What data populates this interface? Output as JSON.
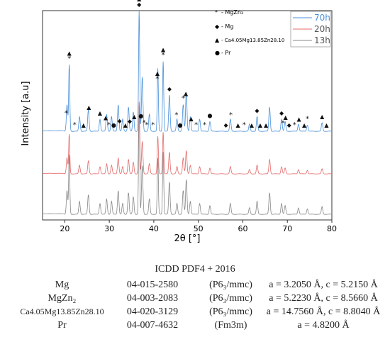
{
  "chart_data": {
    "type": "line",
    "xlabel": "2θ [°]",
    "ylabel": "Intensity [a.u]",
    "xlim": [
      15,
      80
    ],
    "xticks": [
      20,
      30,
      40,
      50,
      60,
      70,
      80
    ],
    "grid": false,
    "legend": {
      "placement": "top-right",
      "entries": [
        {
          "name": "70h",
          "color": "#4a90d9"
        },
        {
          "name": "20h",
          "color": "#e36a6a"
        },
        {
          "name": "13h",
          "color": "#888888"
        }
      ]
    },
    "phase_key": {
      "placement": "top-center",
      "entries": [
        {
          "symbol": "*",
          "label": "- MgZn₂"
        },
        {
          "symbol": "◆",
          "label": "- Mg"
        },
        {
          "symbol": "▲",
          "label": "- Ca4.05Mg13.85Zn28.10"
        },
        {
          "symbol": "●",
          "label": "- Pr"
        }
      ]
    },
    "peaks": [
      {
        "x": 20.5,
        "h": 0.22
      },
      {
        "x": 21.0,
        "h": 0.55
      },
      {
        "x": 23.3,
        "h": 0.12
      },
      {
        "x": 25.3,
        "h": 0.18
      },
      {
        "x": 27.9,
        "h": 0.1
      },
      {
        "x": 29.4,
        "h": 0.14
      },
      {
        "x": 30.5,
        "h": 0.12
      },
      {
        "x": 32.0,
        "h": 0.22
      },
      {
        "x": 33.0,
        "h": 0.1
      },
      {
        "x": 34.3,
        "h": 0.2
      },
      {
        "x": 35.4,
        "h": 0.16
      },
      {
        "x": 36.7,
        "h": 1.0
      },
      {
        "x": 37.4,
        "h": 0.45
      },
      {
        "x": 39.0,
        "h": 0.14
      },
      {
        "x": 40.9,
        "h": 0.52
      },
      {
        "x": 42.1,
        "h": 0.58
      },
      {
        "x": 43.5,
        "h": 0.3
      },
      {
        "x": 45.2,
        "h": 0.1
      },
      {
        "x": 46.6,
        "h": 0.22
      },
      {
        "x": 47.3,
        "h": 0.32
      },
      {
        "x": 48.2,
        "h": 0.12
      },
      {
        "x": 50.3,
        "h": 0.1
      },
      {
        "x": 52.6,
        "h": 0.08
      },
      {
        "x": 57.2,
        "h": 0.1
      },
      {
        "x": 61.5,
        "h": 0.06
      },
      {
        "x": 63.2,
        "h": 0.12
      },
      {
        "x": 66.0,
        "h": 0.2
      },
      {
        "x": 68.7,
        "h": 0.1
      },
      {
        "x": 69.5,
        "h": 0.08
      },
      {
        "x": 72.5,
        "h": 0.06
      },
      {
        "x": 74.5,
        "h": 0.05
      },
      {
        "x": 77.8,
        "h": 0.07
      }
    ],
    "series": [
      {
        "name": "70h",
        "color": "#4a90d9",
        "scale": 1.0
      },
      {
        "name": "20h",
        "color": "#e36a6a",
        "scale": 0.52
      },
      {
        "name": "13h",
        "color": "#888888",
        "scale": 0.62
      }
    ],
    "markers": [
      {
        "x": 20.3,
        "symbol": "*"
      },
      {
        "x": 21.0,
        "symbol": "*"
      },
      {
        "x": 21.0,
        "symbol": "▲"
      },
      {
        "x": 22.2,
        "symbol": "*"
      },
      {
        "x": 24.2,
        "symbol": "▲"
      },
      {
        "x": 25.4,
        "symbol": "▲"
      },
      {
        "x": 27.9,
        "symbol": "▲"
      },
      {
        "x": 29.2,
        "symbol": "▲"
      },
      {
        "x": 29.9,
        "symbol": "*"
      },
      {
        "x": 31.0,
        "symbol": "●"
      },
      {
        "x": 32.3,
        "symbol": "◆"
      },
      {
        "x": 33.6,
        "symbol": "▲"
      },
      {
        "x": 34.6,
        "symbol": "◆"
      },
      {
        "x": 35.6,
        "symbol": "▲"
      },
      {
        "x": 36.7,
        "symbol": "◆"
      },
      {
        "x": 36.7,
        "symbol": "▲"
      },
      {
        "x": 37.1,
        "symbol": "●"
      },
      {
        "x": 37.8,
        "symbol": "*"
      },
      {
        "x": 38.4,
        "symbol": "*"
      },
      {
        "x": 39.8,
        "symbol": "*"
      },
      {
        "x": 40.8,
        "symbol": "*"
      },
      {
        "x": 40.8,
        "symbol": "▲"
      },
      {
        "x": 42.1,
        "symbol": "*"
      },
      {
        "x": 42.1,
        "symbol": "▲"
      },
      {
        "x": 43.5,
        "symbol": "◆"
      },
      {
        "x": 45.1,
        "symbol": "*"
      },
      {
        "x": 45.9,
        "symbol": "●"
      },
      {
        "x": 46.6,
        "symbol": "*"
      },
      {
        "x": 47.2,
        "symbol": "▲"
      },
      {
        "x": 48.4,
        "symbol": "▲"
      },
      {
        "x": 49.5,
        "symbol": "*"
      },
      {
        "x": 51.4,
        "symbol": "*"
      },
      {
        "x": 52.6,
        "symbol": "●"
      },
      {
        "x": 56.2,
        "symbol": "◆"
      },
      {
        "x": 57.3,
        "symbol": "*"
      },
      {
        "x": 58.9,
        "symbol": "▲"
      },
      {
        "x": 60.3,
        "symbol": "*"
      },
      {
        "x": 62.0,
        "symbol": "▲"
      },
      {
        "x": 63.2,
        "symbol": "◆"
      },
      {
        "x": 63.9,
        "symbol": "▲"
      },
      {
        "x": 65.2,
        "symbol": "▲"
      },
      {
        "x": 68.7,
        "symbol": "◆"
      },
      {
        "x": 69.0,
        "symbol": "*"
      },
      {
        "x": 69.6,
        "symbol": "▲"
      },
      {
        "x": 70.4,
        "symbol": "◆"
      },
      {
        "x": 71.6,
        "symbol": "*"
      },
      {
        "x": 72.6,
        "symbol": "▲"
      },
      {
        "x": 73.8,
        "symbol": "▲"
      },
      {
        "x": 74.5,
        "symbol": "*"
      },
      {
        "x": 77.8,
        "symbol": "▲"
      },
      {
        "x": 78.8,
        "symbol": "▲"
      }
    ]
  },
  "table": {
    "title": "ICDD PDF4 + 2016",
    "rows": [
      {
        "phase": "Mg",
        "code": "04-015-2580",
        "space_group": "(P6₃/mmc)",
        "lattice": "a = 3.2050 Å, c = 5.2150 Å"
      },
      {
        "phase": "MgZn₂",
        "code": "04-003-2083",
        "space_group": "(P6₃/mmc)",
        "lattice": "a = 5.2230 Å, c = 8.5660 Å"
      },
      {
        "phase": "Ca4.05Mg13.85Zn28.10",
        "code": "04-020-3129",
        "space_group": "(P6₃/mmc)",
        "lattice": "a = 14.7560 Å, c = 8.8040 Å"
      },
      {
        "phase": "Pr",
        "code": "04-007-4632",
        "space_group": "(Fm3m)",
        "lattice": "a = 4.8200 Å"
      }
    ]
  }
}
